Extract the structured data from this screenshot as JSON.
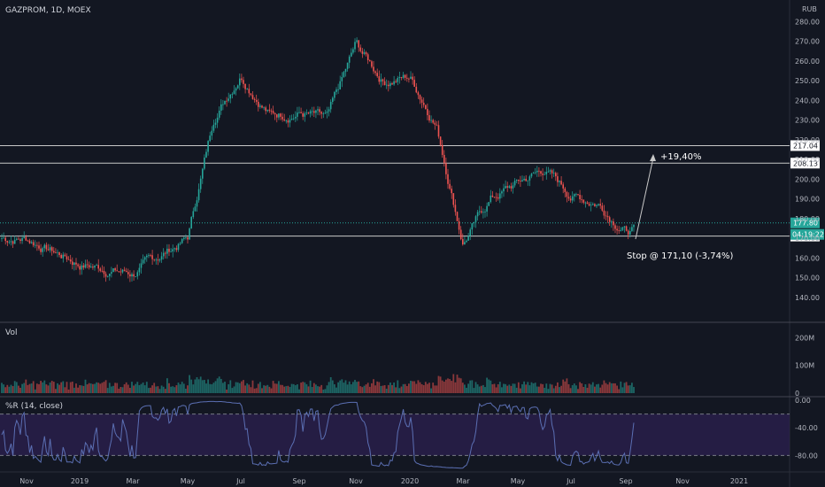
{
  "header": {
    "symbol_title": "GAZPROM, 1D, MOEX",
    "currency": "RUB"
  },
  "chart_data": [
    {
      "type": "candlestick",
      "title": "GAZPROM, 1D, MOEX",
      "ylabel": "RUB",
      "ylim": [
        130,
        282
      ],
      "y_ticks": [
        140,
        150,
        160,
        170,
        180,
        190,
        200,
        210,
        220,
        230,
        240,
        250,
        260,
        270,
        280
      ],
      "y_tick_labels": [
        "140.00",
        "150.00",
        "160.00",
        "170.00",
        "180.00",
        "190.00",
        "200.00",
        "210.00",
        "220.00",
        "230.00",
        "240.00",
        "250.00",
        "260.00",
        "270.00",
        "280.00"
      ],
      "x_tick_labels": [
        "Nov",
        "2019",
        "Mar",
        "May",
        "Jul",
        "Sep",
        "Nov",
        "2020",
        "Mar",
        "May",
        "Jul",
        "Sep",
        "Nov",
        "2021"
      ],
      "anchors": [
        [
          "Nov",
          170
        ],
        [
          "2019",
          157
        ],
        [
          "Mar",
          152
        ],
        [
          "May",
          170
        ],
        [
          "Jun",
          232
        ],
        [
          "Jul",
          254
        ],
        [
          "Aug",
          233
        ],
        [
          "Sep",
          234
        ],
        [
          "Oct",
          230
        ],
        [
          "Nov",
          268
        ],
        [
          "Dec",
          250
        ],
        [
          "2020",
          252
        ],
        [
          "Feb",
          228
        ],
        [
          "Mar",
          168
        ],
        [
          "Apr",
          190
        ],
        [
          "May",
          198
        ],
        [
          "Jun",
          205
        ],
        [
          "Jul",
          192
        ],
        [
          "Aug",
          188
        ],
        [
          "Sep",
          174
        ]
      ],
      "horizontal_lines": [
        {
          "value": 217.04,
          "label": "217.04"
        },
        {
          "value": 208.13,
          "label": "208.13"
        },
        {
          "value": 171.1,
          "label": "171.10"
        }
      ],
      "last_price": {
        "value": 177.8,
        "label": "177.80"
      },
      "countdown": "04:19:22",
      "projection": {
        "from": 173,
        "to": 213,
        "label": "+19,40%"
      },
      "stop_annotation": "Stop @ 171,10 (-3,74%)",
      "up_color": "#26a69a",
      "down_color": "#ef5350"
    },
    {
      "type": "bar",
      "title": "Vol",
      "ylim": [
        0,
        230
      ],
      "y_ticks": [
        0,
        100,
        200
      ],
      "y_tick_labels": [
        "0",
        "100M",
        "200M"
      ],
      "typical_value_millions": 30,
      "max_value_millions": 210
    },
    {
      "type": "line",
      "title": "%R (14, close)",
      "ylim": [
        -100,
        0
      ],
      "y_ticks": [
        0,
        -40,
        -80
      ],
      "y_tick_labels": [
        "0.00",
        "-40.00",
        "-80.00"
      ],
      "bands": [
        -20,
        -80
      ],
      "line_color": "#5b6fb3",
      "band_color": "#2a1f4e"
    }
  ],
  "colors": {
    "background": "#131722",
    "grid": "#2a2e39",
    "hline": "#c8c8c8",
    "text": "#d1d4dc"
  }
}
